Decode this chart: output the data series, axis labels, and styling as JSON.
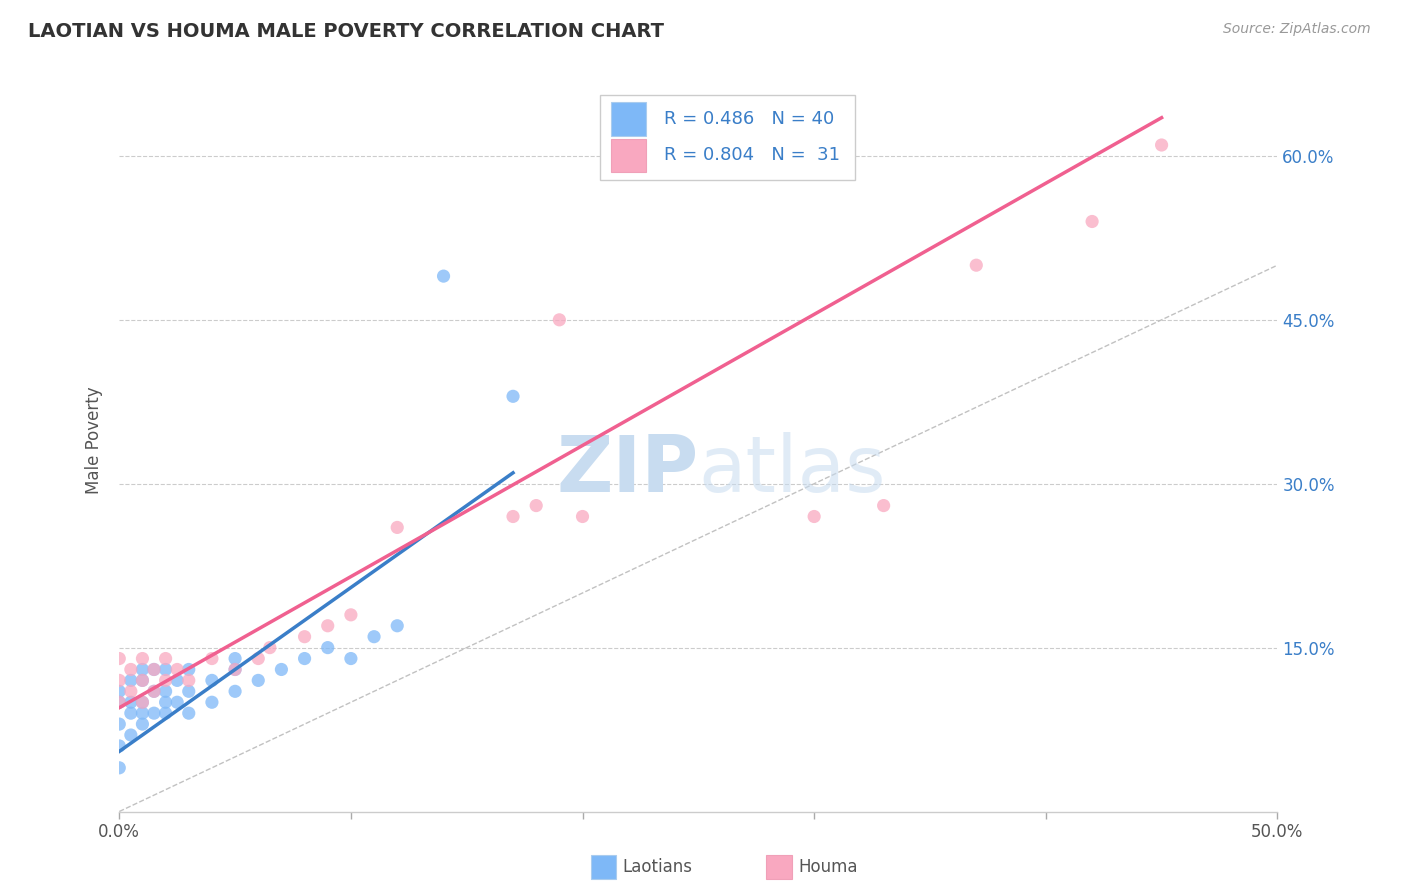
{
  "title": "LAOTIAN VS HOUMA MALE POVERTY CORRELATION CHART",
  "source_text": "Source: ZipAtlas.com",
  "ylabel": "Male Poverty",
  "xlim": [
    0.0,
    0.5
  ],
  "ylim": [
    0.0,
    0.68
  ],
  "xtick_labels": [
    "0.0%",
    "",
    "",
    "",
    "",
    "50.0%"
  ],
  "xtick_vals": [
    0.0,
    0.1,
    0.2,
    0.3,
    0.4,
    0.5
  ],
  "ytick_labels": [
    "15.0%",
    "30.0%",
    "45.0%",
    "60.0%"
  ],
  "ytick_vals": [
    0.15,
    0.3,
    0.45,
    0.6
  ],
  "laotian_color": "#7EB8F7",
  "houma_color": "#F9A8C0",
  "laotian_line_color": "#3A7EC8",
  "houma_line_color": "#F06090",
  "ref_line_color": "#BBBBBB",
  "legend_text_color": "#3A7EC8",
  "watermark_zip_color": "#C8DCF0",
  "watermark_atlas_color": "#C8DCF0",
  "R_laotian": 0.486,
  "N_laotian": 40,
  "R_houma": 0.804,
  "N_houma": 31,
  "laotian_x": [
    0.0,
    0.0,
    0.0,
    0.0,
    0.0,
    0.005,
    0.005,
    0.005,
    0.005,
    0.01,
    0.01,
    0.01,
    0.01,
    0.01,
    0.015,
    0.015,
    0.015,
    0.02,
    0.02,
    0.02,
    0.02,
    0.025,
    0.025,
    0.03,
    0.03,
    0.03,
    0.04,
    0.04,
    0.05,
    0.05,
    0.05,
    0.06,
    0.07,
    0.08,
    0.09,
    0.1,
    0.11,
    0.12,
    0.14,
    0.17
  ],
  "laotian_y": [
    0.04,
    0.06,
    0.08,
    0.1,
    0.11,
    0.07,
    0.09,
    0.1,
    0.12,
    0.08,
    0.09,
    0.1,
    0.12,
    0.13,
    0.09,
    0.11,
    0.13,
    0.09,
    0.1,
    0.11,
    0.13,
    0.1,
    0.12,
    0.09,
    0.11,
    0.13,
    0.1,
    0.12,
    0.11,
    0.13,
    0.14,
    0.12,
    0.13,
    0.14,
    0.15,
    0.14,
    0.16,
    0.17,
    0.49,
    0.38
  ],
  "houma_x": [
    0.0,
    0.0,
    0.0,
    0.005,
    0.005,
    0.01,
    0.01,
    0.01,
    0.015,
    0.015,
    0.02,
    0.02,
    0.025,
    0.03,
    0.04,
    0.05,
    0.06,
    0.065,
    0.08,
    0.09,
    0.1,
    0.12,
    0.17,
    0.18,
    0.19,
    0.2,
    0.3,
    0.33,
    0.37,
    0.42,
    0.45
  ],
  "houma_y": [
    0.1,
    0.12,
    0.14,
    0.11,
    0.13,
    0.1,
    0.12,
    0.14,
    0.11,
    0.13,
    0.12,
    0.14,
    0.13,
    0.12,
    0.14,
    0.13,
    0.14,
    0.15,
    0.16,
    0.17,
    0.18,
    0.26,
    0.27,
    0.28,
    0.45,
    0.27,
    0.27,
    0.28,
    0.5,
    0.54,
    0.61
  ],
  "laotian_line_x": [
    0.0,
    0.17
  ],
  "laotian_line_y": [
    0.055,
    0.31
  ],
  "houma_line_x": [
    0.0,
    0.45
  ],
  "houma_line_y": [
    0.095,
    0.635
  ]
}
